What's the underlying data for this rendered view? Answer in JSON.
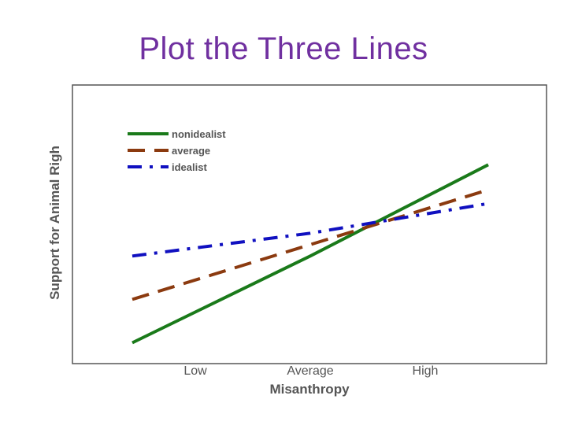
{
  "slide": {
    "title": "Plot the Three Lines"
  },
  "chart_data": {
    "type": "line",
    "title": "",
    "xlabel": "Misanthropy",
    "ylabel": "Support for Animal Righ",
    "categories": [
      "Low",
      "Average",
      "High"
    ],
    "ylim": [
      0,
      10
    ],
    "grid": false,
    "legend_position": "top-left",
    "series": [
      {
        "name": "nonidealist",
        "values": [
          0.5,
          4.3,
          8.3
        ],
        "color": "#1a7a1a",
        "dash": "solid"
      },
      {
        "name": "average",
        "values": [
          2.4,
          4.8,
          7.2
        ],
        "color": "#8b3a0f",
        "dash": "long-dash"
      },
      {
        "name": "idealist",
        "values": [
          4.3,
          5.3,
          6.6
        ],
        "color": "#1010c0",
        "dash": "dash-dot"
      }
    ]
  }
}
